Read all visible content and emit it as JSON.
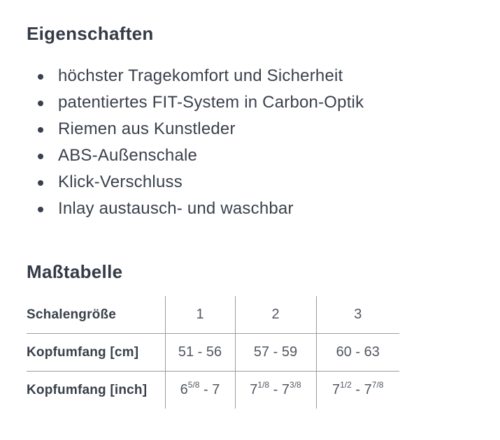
{
  "features": {
    "title": "Eigenschaften",
    "items": [
      "höchster Tragekomfort und Sicherheit",
      "patentiertes FIT-System in Carbon-Optik",
      "Riemen aus Kunstleder",
      "ABS-Außenschale",
      "Klick-Verschluss",
      "Inlay austausch- und waschbar"
    ]
  },
  "size_table": {
    "title": "Maßtabelle",
    "header": {
      "label": "Schalengröße",
      "values": [
        "1",
        "2",
        "3"
      ]
    },
    "rows": [
      {
        "label": "Kopfumfang [cm]",
        "values": [
          "51 - 56",
          "57 - 59",
          "60 - 63"
        ]
      },
      {
        "label": "Kopfumfang [inch]",
        "values": [
          "6^5/8^ - 7",
          "7^1/8^ - 7^3/8^",
          "7^1/2^ - 7^7/8^"
        ]
      }
    ]
  },
  "colors": {
    "heading_text": "#343b47",
    "body_text": "#3a414c",
    "table_value_text": "#51575f",
    "table_border": "#9b9b9b",
    "background": "#ffffff"
  }
}
